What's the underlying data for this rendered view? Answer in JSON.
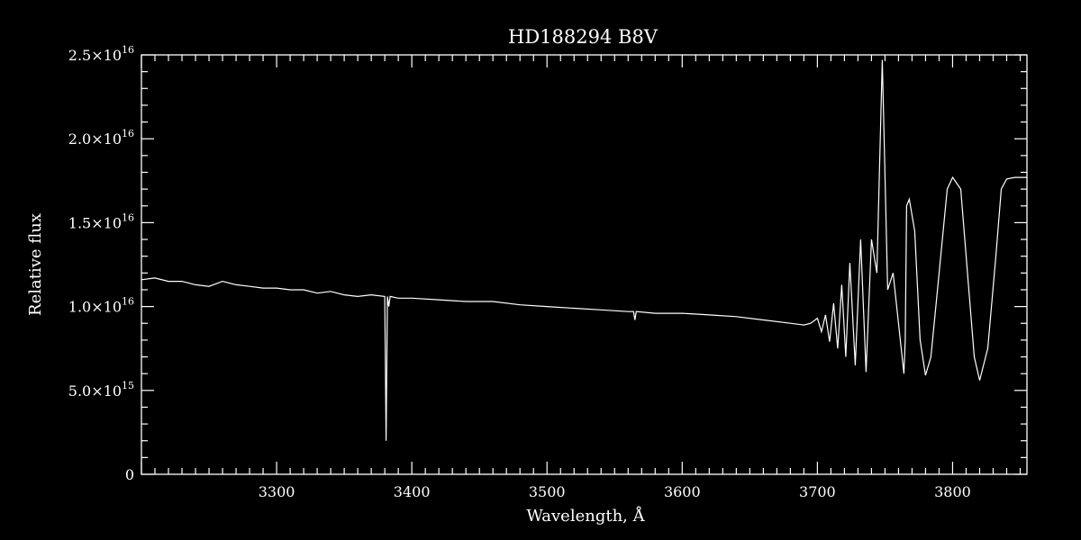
{
  "chart_data": {
    "type": "line",
    "title": "HD188294   B8V",
    "xlabel": "Wavelength, Å",
    "ylabel": "Relative flux",
    "xlim": [
      3200,
      3855
    ],
    "ylim": [
      0,
      2.5e+16
    ],
    "x_ticks": [
      3300,
      3400,
      3500,
      3600,
      3700,
      3800
    ],
    "y_ticks": [
      {
        "value": 0,
        "mant": "0",
        "exp": ""
      },
      {
        "value": 5000000000000000.0,
        "mant": "5.0×10",
        "exp": "15"
      },
      {
        "value": 1e+16,
        "mant": "1.0×10",
        "exp": "16"
      },
      {
        "value": 1.5e+16,
        "mant": "1.5×10",
        "exp": "16"
      },
      {
        "value": 2e+16,
        "mant": "2.0×10",
        "exp": "16"
      },
      {
        "value": 2.5e+16,
        "mant": "2.5×10",
        "exp": "16"
      }
    ],
    "grid": false,
    "series": [
      {
        "x": [
          3200,
          3210,
          3220,
          3230,
          3240,
          3250,
          3260,
          3270,
          3280,
          3290,
          3300,
          3310,
          3320,
          3330,
          3340,
          3350,
          3360,
          3370,
          3380,
          3381,
          3382,
          3383,
          3384,
          3390,
          3400,
          3420,
          3440,
          3460,
          3480,
          3500,
          3520,
          3540,
          3560,
          3564,
          3565,
          3566,
          3580,
          3600,
          3620,
          3640,
          3660,
          3680,
          3690,
          3695,
          3700,
          3703,
          3706,
          3709,
          3712,
          3715,
          3718,
          3721,
          3724,
          3728,
          3732,
          3736,
          3740,
          3744,
          3748,
          3752,
          3756,
          3760,
          3764,
          3765,
          3766,
          3768,
          3772,
          3776,
          3780,
          3784,
          3790,
          3796,
          3800,
          3806,
          3812,
          3816,
          3820,
          3826,
          3832,
          3836,
          3840,
          3846,
          3852,
          3855
        ],
        "y": [
          1.16e+16,
          1.17e+16,
          1.15e+16,
          1.15e+16,
          1.13e+16,
          1.12e+16,
          1.15e+16,
          1.13e+16,
          1.12e+16,
          1.11e+16,
          1.11e+16,
          1.1e+16,
          1.1e+16,
          1.08e+16,
          1.09e+16,
          1.07e+16,
          1.06e+16,
          1.07e+16,
          1.06e+16,
          2000000000000000.0,
          1.06e+16,
          1e+16,
          1.06e+16,
          1.05e+16,
          1.05e+16,
          1.04e+16,
          1.03e+16,
          1.03e+16,
          1.01e+16,
          1e+16,
          9900000000000000.0,
          9800000000000000.0,
          9700000000000000.0,
          9700000000000000.0,
          9200000000000000.0,
          9700000000000000.0,
          9600000000000000.0,
          9600000000000000.0,
          9500000000000000.0,
          9400000000000000.0,
          9200000000000000.0,
          9000000000000000.0,
          8900000000000000.0,
          9000000000000000.0,
          9300000000000000.0,
          8500000000000000.0,
          9500000000000000.0,
          7900000000000000.0,
          1.02e+16,
          7500000000000000.0,
          1.13e+16,
          7000000000000000.0,
          1.26e+16,
          6500000000000000.0,
          1.4e+16,
          6100000000000000.0,
          1.4e+16,
          1.2e+16,
          2.47e+16,
          1.1e+16,
          1.2e+16,
          9000000000000000.0,
          6000000000000000.0,
          8000000000000000.0,
          1.6e+16,
          1.64e+16,
          1.45e+16,
          8000000000000000.0,
          5900000000000000.0,
          7000000000000000.0,
          1.2e+16,
          1.7e+16,
          1.77e+16,
          1.7e+16,
          1.1e+16,
          7000000000000000.0,
          5600000000000000.0,
          7500000000000000.0,
          1.3e+16,
          1.7e+16,
          1.76e+16,
          1.77e+16,
          1.77e+16,
          1.77e+16
        ]
      }
    ]
  }
}
